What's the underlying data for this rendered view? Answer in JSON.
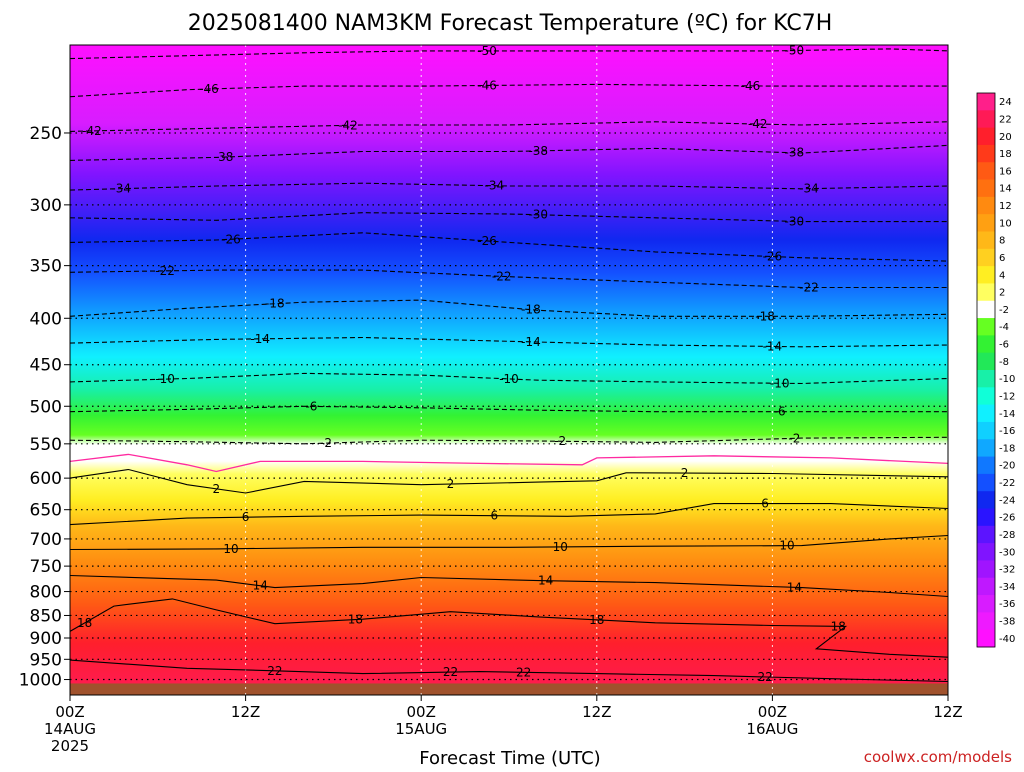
{
  "chart_data": {
    "type": "heatmap",
    "title": "2025081400 NAM3KM Forecast Temperature (ºC) for KC7H",
    "xlabel": "Forecast Time (UTC)",
    "ylabel": "",
    "credit": "coolwx.com/models",
    "x_ticks": [
      {
        "hour": 0,
        "lines": [
          "00Z",
          "14AUG",
          "2025"
        ]
      },
      {
        "hour": 12,
        "lines": [
          "12Z"
        ]
      },
      {
        "hour": 24,
        "lines": [
          "00Z",
          "15AUG"
        ]
      },
      {
        "hour": 36,
        "lines": [
          "12Z"
        ]
      },
      {
        "hour": 48,
        "lines": [
          "00Z",
          "16AUG"
        ]
      },
      {
        "hour": 60,
        "lines": [
          "12Z"
        ]
      }
    ],
    "xlim": [
      0,
      60
    ],
    "y_axis": {
      "scale": "log",
      "unit": "hPa",
      "range": [
        1040,
        200
      ],
      "ticks": [
        250,
        300,
        350,
        400,
        450,
        500,
        550,
        600,
        650,
        700,
        750,
        800,
        850,
        900,
        950,
        1000
      ]
    },
    "grid": true,
    "colorbar": {
      "placement": "right",
      "labels": [
        24,
        22,
        20,
        18,
        16,
        14,
        12,
        10,
        8,
        6,
        4,
        2,
        -2,
        -4,
        -6,
        -8,
        -10,
        -12,
        -14,
        -16,
        -18,
        -20,
        -22,
        -24,
        -26,
        -28,
        -30,
        -32,
        -34,
        -36,
        -38,
        -40
      ],
      "colors": [
        "#ff1f8a",
        "#ff1a56",
        "#ff1f2c",
        "#ff3a1a",
        "#ff5a14",
        "#ff7010",
        "#ff8a10",
        "#ffa012",
        "#ffb818",
        "#ffd020",
        "#ffee22",
        "#ffff60",
        "#ffffff",
        "#66ff22",
        "#33f233",
        "#22e858",
        "#18f0a8",
        "#10ffd8",
        "#10f0ff",
        "#10d0ff",
        "#10a8ff",
        "#1078ff",
        "#1450ff",
        "#1028f0",
        "#2a14ff",
        "#5c14ff",
        "#8014ff",
        "#a014ff",
        "#bf18ff",
        "#d81cff",
        "#ee1aff",
        "#ff10ff"
      ]
    },
    "isotherm_series": [
      {
        "temp": -50,
        "p": [
          [
            0,
            207
          ],
          [
            16,
            204
          ],
          [
            24,
            203
          ],
          [
            36,
            203
          ],
          [
            48,
            203
          ],
          [
            56,
            202
          ],
          [
            60,
            203
          ]
        ],
        "labels": [
          [
            28.5,
            -50
          ],
          [
            49.5,
            -50
          ]
        ]
      },
      {
        "temp": -46,
        "p": [
          [
            0,
            228
          ],
          [
            8,
            224
          ],
          [
            16,
            222
          ],
          [
            24,
            222
          ],
          [
            36,
            221
          ],
          [
            48,
            222
          ],
          [
            60,
            222
          ]
        ],
        "labels": [
          [
            9.5,
            -46
          ],
          [
            28.5,
            -46
          ],
          [
            46.5,
            -46
          ]
        ]
      },
      {
        "temp": -42,
        "p": [
          [
            0,
            249
          ],
          [
            10,
            247
          ],
          [
            20,
            245
          ],
          [
            30,
            245
          ],
          [
            40,
            243
          ],
          [
            50,
            245
          ],
          [
            60,
            243
          ]
        ],
        "labels": [
          [
            1.5,
            -42
          ],
          [
            19,
            -42
          ],
          [
            47,
            -42
          ]
        ]
      },
      {
        "temp": -38,
        "p": [
          [
            0,
            268
          ],
          [
            10,
            266
          ],
          [
            20,
            262
          ],
          [
            30,
            262
          ],
          [
            40,
            260
          ],
          [
            50,
            263
          ],
          [
            60,
            258
          ]
        ],
        "labels": [
          [
            10.5,
            -38
          ],
          [
            32,
            -38
          ],
          [
            49.5,
            -38
          ]
        ]
      },
      {
        "temp": -34,
        "p": [
          [
            0,
            289
          ],
          [
            10,
            286
          ],
          [
            20,
            284
          ],
          [
            30,
            286
          ],
          [
            40,
            286
          ],
          [
            50,
            288
          ],
          [
            60,
            286
          ]
        ],
        "labels": [
          [
            3.5,
            -34
          ],
          [
            29,
            -34
          ],
          [
            50.5,
            -34
          ]
        ]
      },
      {
        "temp": -30,
        "p": [
          [
            0,
            310
          ],
          [
            10,
            312
          ],
          [
            20,
            306
          ],
          [
            30,
            307
          ],
          [
            40,
            310
          ],
          [
            50,
            313
          ],
          [
            60,
            313
          ]
        ],
        "labels": [
          [
            32,
            -30
          ],
          [
            49.5,
            -30
          ]
        ]
      },
      {
        "temp": -26,
        "p": [
          [
            0,
            330
          ],
          [
            10,
            328
          ],
          [
            20,
            322
          ],
          [
            30,
            330
          ],
          [
            40,
            338
          ],
          [
            50,
            343
          ],
          [
            60,
            346
          ]
        ],
        "labels": [
          [
            11,
            -26
          ],
          [
            28.5,
            -26
          ],
          [
            48,
            -26
          ]
        ]
      },
      {
        "temp": -22,
        "p": [
          [
            0,
            356
          ],
          [
            10,
            354
          ],
          [
            20,
            354
          ],
          [
            30,
            360
          ],
          [
            40,
            365
          ],
          [
            50,
            370
          ],
          [
            60,
            370
          ]
        ],
        "labels": [
          [
            6.5,
            -22
          ],
          [
            29.5,
            -22
          ],
          [
            50.5,
            -22
          ]
        ]
      },
      {
        "temp": -18,
        "p": [
          [
            0,
            398
          ],
          [
            8,
            390
          ],
          [
            16,
            384
          ],
          [
            24,
            382
          ],
          [
            32,
            392
          ],
          [
            40,
            398
          ],
          [
            50,
            398
          ],
          [
            60,
            396
          ]
        ],
        "labels": [
          [
            14,
            -18
          ],
          [
            31.5,
            -18
          ],
          [
            47.5,
            -18
          ]
        ]
      },
      {
        "temp": -14,
        "p": [
          [
            0,
            426
          ],
          [
            10,
            422
          ],
          [
            20,
            420
          ],
          [
            30,
            424
          ],
          [
            40,
            428
          ],
          [
            50,
            430
          ],
          [
            60,
            428
          ]
        ],
        "labels": [
          [
            13,
            -14
          ],
          [
            31.5,
            -14
          ],
          [
            48,
            -14
          ]
        ]
      },
      {
        "temp": -10,
        "p": [
          [
            0,
            470
          ],
          [
            8,
            466
          ],
          [
            16,
            460
          ],
          [
            24,
            462
          ],
          [
            32,
            468
          ],
          [
            40,
            470
          ],
          [
            50,
            472
          ],
          [
            60,
            466
          ]
        ],
        "labels": [
          [
            6.5,
            -10
          ],
          [
            30,
            -10
          ],
          [
            48.5,
            -10
          ]
        ]
      },
      {
        "temp": -6,
        "p": [
          [
            0,
            507
          ],
          [
            8,
            504
          ],
          [
            16,
            500
          ],
          [
            24,
            502
          ],
          [
            32,
            505
          ],
          [
            40,
            507
          ],
          [
            50,
            507
          ],
          [
            60,
            507
          ]
        ],
        "labels": [
          [
            16.5,
            -6
          ],
          [
            48.5,
            -6
          ]
        ]
      },
      {
        "temp": -2,
        "p": [
          [
            0,
            545
          ],
          [
            8,
            547
          ],
          [
            16,
            550
          ],
          [
            24,
            545
          ],
          [
            32,
            546
          ],
          [
            40,
            548
          ],
          [
            50,
            542
          ],
          [
            60,
            541
          ]
        ],
        "labels": [
          [
            17.5,
            -2
          ],
          [
            33.5,
            -2
          ],
          [
            49.5,
            -2
          ]
        ]
      },
      {
        "temp": 2,
        "p": [
          [
            0,
            600
          ],
          [
            4,
            587
          ],
          [
            8,
            610
          ],
          [
            12,
            623
          ],
          [
            16,
            605
          ],
          [
            24,
            610
          ],
          [
            32,
            606
          ],
          [
            36,
            604
          ],
          [
            38,
            592
          ],
          [
            48,
            593
          ],
          [
            60,
            598
          ]
        ],
        "labels": [
          [
            10,
            2
          ],
          [
            26,
            2
          ],
          [
            42,
            2
          ]
        ]
      },
      {
        "temp": 6,
        "p": [
          [
            0,
            675
          ],
          [
            8,
            664
          ],
          [
            16,
            661
          ],
          [
            24,
            659
          ],
          [
            34,
            661
          ],
          [
            40,
            657
          ],
          [
            44,
            640
          ],
          [
            52,
            640
          ],
          [
            60,
            648
          ]
        ],
        "labels": [
          [
            12,
            6
          ],
          [
            29,
            6
          ],
          [
            47.5,
            6
          ]
        ]
      },
      {
        "temp": 10,
        "p": [
          [
            0,
            719
          ],
          [
            10,
            718
          ],
          [
            20,
            715
          ],
          [
            30,
            715
          ],
          [
            40,
            713
          ],
          [
            50,
            712
          ],
          [
            56,
            700
          ],
          [
            60,
            694
          ]
        ],
        "labels": [
          [
            11,
            10
          ],
          [
            33.5,
            10
          ],
          [
            49,
            10
          ]
        ]
      },
      {
        "temp": 14,
        "p": [
          [
            0,
            768
          ],
          [
            10,
            777
          ],
          [
            14,
            792
          ],
          [
            20,
            784
          ],
          [
            24,
            772
          ],
          [
            32,
            778
          ],
          [
            40,
            782
          ],
          [
            50,
            792
          ],
          [
            56,
            802
          ],
          [
            60,
            810
          ]
        ],
        "labels": [
          [
            13,
            14
          ],
          [
            32.5,
            14
          ],
          [
            49.5,
            14
          ]
        ]
      },
      {
        "temp": 18,
        "p": [
          [
            0,
            885
          ],
          [
            3,
            830
          ],
          [
            7,
            815
          ],
          [
            10,
            838
          ],
          [
            14,
            868
          ],
          [
            20,
            858
          ],
          [
            26,
            842
          ],
          [
            32,
            853
          ],
          [
            40,
            866
          ],
          [
            48,
            872
          ],
          [
            53,
            874
          ],
          [
            51,
            925
          ],
          [
            56,
            938
          ],
          [
            60,
            945
          ]
        ],
        "labels": [
          [
            1,
            18
          ],
          [
            19.5,
            18
          ],
          [
            36,
            18
          ],
          [
            52.5,
            18
          ]
        ]
      },
      {
        "temp": 22,
        "p": [
          [
            0,
            952
          ],
          [
            8,
            972
          ],
          [
            14,
            978
          ],
          [
            20,
            985
          ],
          [
            28,
            980
          ],
          [
            36,
            985
          ],
          [
            44,
            990
          ],
          [
            52,
            998
          ],
          [
            60,
            1005
          ]
        ],
        "labels": [
          [
            14,
            22
          ],
          [
            31,
            22
          ],
          [
            47.5,
            22
          ],
          [
            26,
            22
          ]
        ]
      }
    ],
    "secondary_isotherm": {
      "temp": 0,
      "color": "#ff2aa0",
      "p": [
        [
          0,
          575
        ],
        [
          4,
          565
        ],
        [
          8,
          580
        ],
        [
          10,
          590
        ],
        [
          13,
          575
        ],
        [
          20,
          575
        ],
        [
          28,
          578
        ],
        [
          35,
          580
        ],
        [
          36,
          570
        ],
        [
          44,
          567
        ],
        [
          52,
          570
        ],
        [
          60,
          578
        ]
      ]
    }
  }
}
